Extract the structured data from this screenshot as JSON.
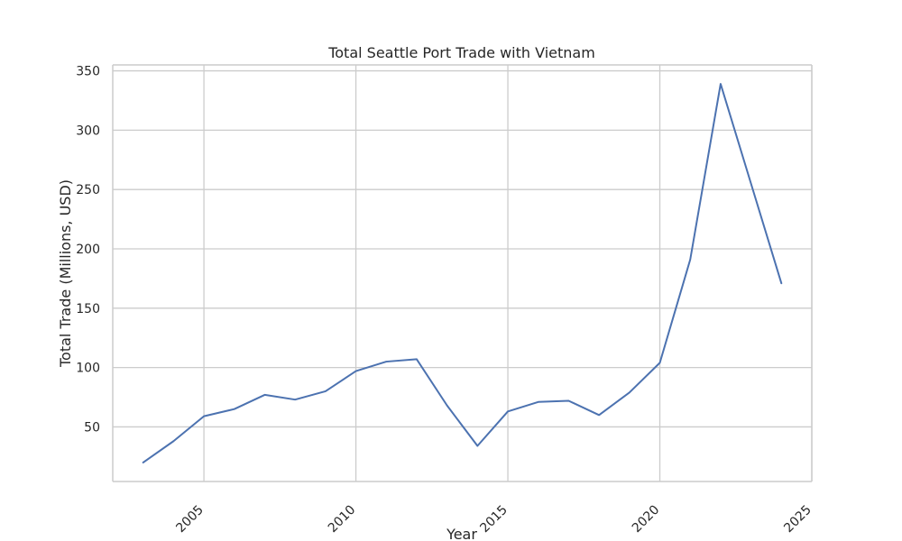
{
  "chart_data": {
    "type": "line",
    "title": "Total Seattle Port Trade with Vietnam",
    "xlabel": "Year",
    "ylabel": "Total Trade (Millions, USD)",
    "xlim": [
      2002,
      2025
    ],
    "ylim": [
      4,
      355
    ],
    "xticks": [
      2005,
      2010,
      2015,
      2020,
      2025
    ],
    "yticks": [
      50,
      100,
      150,
      200,
      250,
      300,
      350
    ],
    "grid": true,
    "line_color": "#4c72b0",
    "series": [
      {
        "x": [
          2003,
          2004,
          2005,
          2006,
          2007,
          2008,
          2009,
          2010,
          2011,
          2012,
          2013,
          2014,
          2015,
          2016,
          2017,
          2018,
          2019,
          2020,
          2021,
          2022,
          2023,
          2024
        ],
        "values": [
          20,
          38,
          59,
          65,
          77,
          73,
          80,
          97,
          105,
          107,
          68,
          34,
          63,
          71,
          72,
          60,
          79,
          104,
          191,
          339,
          255,
          171
        ]
      }
    ]
  }
}
